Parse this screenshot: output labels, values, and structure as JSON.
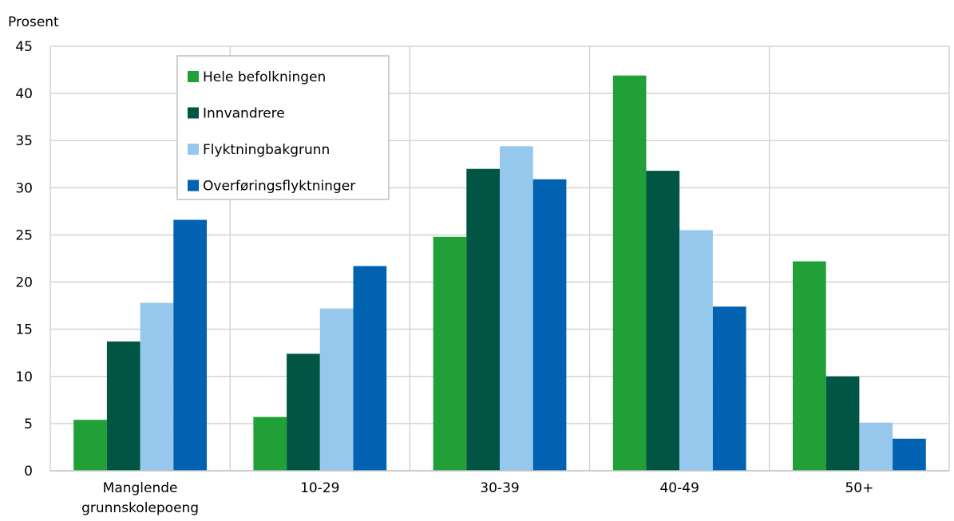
{
  "chart_data": {
    "type": "bar",
    "title": "",
    "xlabel": "",
    "ylabel": "Prosent",
    "ylim": [
      0,
      45
    ],
    "yticks": [
      0,
      5,
      10,
      15,
      20,
      25,
      30,
      35,
      40,
      45
    ],
    "grid": true,
    "legend_position": "top-left",
    "categories": [
      [
        "Manglende",
        "grunnskolepoeng"
      ],
      [
        "10-29"
      ],
      [
        "30-39"
      ],
      [
        "40-49"
      ],
      [
        "50+"
      ]
    ],
    "series": [
      {
        "name": "Hele befolkningen",
        "color": "#21a038",
        "values": [
          5.4,
          5.7,
          24.8,
          41.9,
          22.2
        ]
      },
      {
        "name": "Innvandrere",
        "color": "#005545",
        "values": [
          13.7,
          12.4,
          32.0,
          31.8,
          10.0
        ]
      },
      {
        "name": "Flyktningbakgrunn",
        "color": "#95c8ec",
        "values": [
          17.8,
          17.2,
          34.4,
          25.5,
          5.1
        ]
      },
      {
        "name": "Overføringsflyktninger",
        "color": "#0062b1",
        "values": [
          26.6,
          21.7,
          30.9,
          17.4,
          3.4
        ]
      }
    ]
  }
}
